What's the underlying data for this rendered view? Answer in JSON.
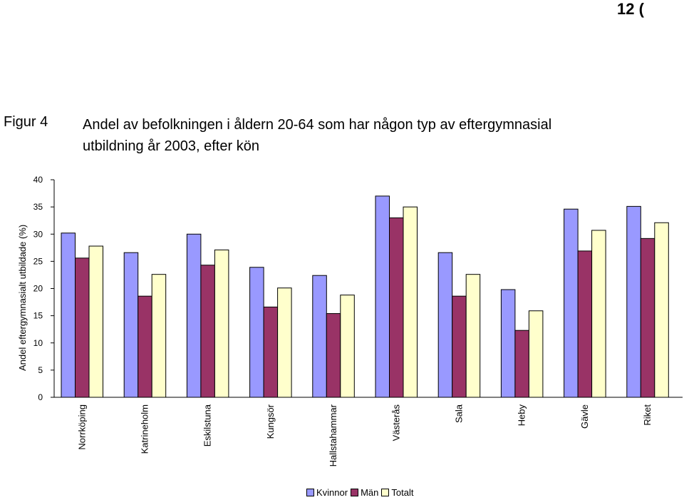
{
  "page_number": "12 (",
  "figure": {
    "label": "Figur 4",
    "title_line1": "Andel av befolkningen i åldern 20-64 som har någon typ av eftergymnasial",
    "title_line2": "utbildning år 2003, efter kön"
  },
  "colors": {
    "Kvinnor": "#9999ff",
    "Män": "#993366",
    "Totalt": "#ffffcc"
  },
  "chart_data": {
    "type": "bar",
    "title": "Andel av befolkningen i åldern 20-64 som har någon typ av eftergymnasial utbildning år 2003, efter kön",
    "xlabel": "",
    "ylabel": "Andel eftergymnasialt utbildade (%)",
    "ylim": [
      0,
      40
    ],
    "yticks": [
      0,
      5,
      10,
      15,
      20,
      25,
      30,
      35,
      40
    ],
    "grid": false,
    "legend": "bottom",
    "categories": [
      "Norrköping",
      "Katrineholm",
      "Eskilstuna",
      "Kungsör",
      "Hallstahammar",
      "Västerås",
      "Sala",
      "Heby",
      "Gävle",
      "Riket"
    ],
    "series": [
      {
        "name": "Kvinnor",
        "values": [
          30.2,
          26.6,
          30.0,
          23.9,
          22.4,
          37.0,
          26.6,
          19.8,
          34.6,
          35.1
        ]
      },
      {
        "name": "Män",
        "values": [
          25.6,
          18.6,
          24.3,
          16.6,
          15.4,
          33.0,
          18.6,
          12.3,
          26.9,
          29.2
        ]
      },
      {
        "name": "Totalt",
        "values": [
          27.8,
          22.6,
          27.1,
          20.1,
          18.8,
          35.0,
          22.6,
          15.9,
          30.7,
          32.1
        ]
      }
    ]
  }
}
